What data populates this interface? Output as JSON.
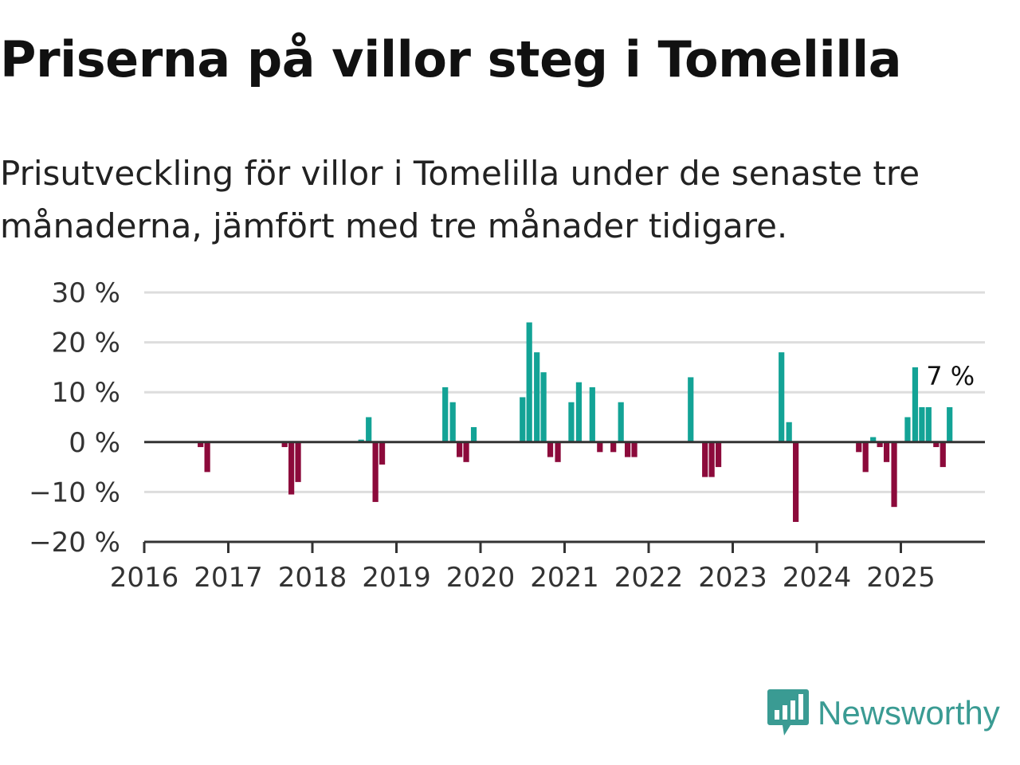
{
  "title": "Priserna på villor steg i Tomelilla",
  "subtitle": "Prisutveckling för villor i Tomelilla under de senaste tre månaderna, jämfört med tre månader tidigare.",
  "brand": {
    "name": "Newsworthy",
    "color": "#3a9b93"
  },
  "colors": {
    "positive": "#13a396",
    "negative": "#8c0a3b",
    "grid": "#dddddd",
    "axis": "#333333"
  },
  "chart_data": {
    "type": "bar",
    "x_unit": "year",
    "xlim": [
      2016,
      2026
    ],
    "ylim": [
      -20,
      30
    ],
    "yticks": [
      -20,
      -10,
      0,
      10,
      20,
      30
    ],
    "ytick_labels": [
      "−20 %",
      "−10 %",
      "0 %",
      "10 %",
      "20 %",
      "30 %"
    ],
    "xticks": [
      2016,
      2017,
      2018,
      2019,
      2020,
      2021,
      2022,
      2023,
      2024,
      2025
    ],
    "xtick_labels": [
      "2016",
      "2017",
      "2018",
      "2019",
      "2020",
      "2021",
      "2022",
      "2023",
      "2024",
      "2025"
    ],
    "grid": true,
    "annotation": {
      "text": "7 %",
      "x": 2025.58,
      "y": 7
    },
    "points": [
      {
        "x": 2016.67,
        "y": -1
      },
      {
        "x": 2016.75,
        "y": -6
      },
      {
        "x": 2017.67,
        "y": -1
      },
      {
        "x": 2017.75,
        "y": -10.5
      },
      {
        "x": 2017.83,
        "y": -8
      },
      {
        "x": 2018.58,
        "y": 0.5
      },
      {
        "x": 2018.67,
        "y": 5
      },
      {
        "x": 2018.75,
        "y": -12
      },
      {
        "x": 2018.83,
        "y": -4.5
      },
      {
        "x": 2019.58,
        "y": 11
      },
      {
        "x": 2019.67,
        "y": 8
      },
      {
        "x": 2019.75,
        "y": -3
      },
      {
        "x": 2019.83,
        "y": -4
      },
      {
        "x": 2019.92,
        "y": 3
      },
      {
        "x": 2020.5,
        "y": 9
      },
      {
        "x": 2020.58,
        "y": 24
      },
      {
        "x": 2020.67,
        "y": 18
      },
      {
        "x": 2020.75,
        "y": 14
      },
      {
        "x": 2020.83,
        "y": -3
      },
      {
        "x": 2020.92,
        "y": -4
      },
      {
        "x": 2021.08,
        "y": 8
      },
      {
        "x": 2021.17,
        "y": 12
      },
      {
        "x": 2021.33,
        "y": 11
      },
      {
        "x": 2021.42,
        "y": -2
      },
      {
        "x": 2021.58,
        "y": -2
      },
      {
        "x": 2021.67,
        "y": 8
      },
      {
        "x": 2021.75,
        "y": -3
      },
      {
        "x": 2021.83,
        "y": -3
      },
      {
        "x": 2022.5,
        "y": 13
      },
      {
        "x": 2022.67,
        "y": -7
      },
      {
        "x": 2022.75,
        "y": -7
      },
      {
        "x": 2022.83,
        "y": -5
      },
      {
        "x": 2023.58,
        "y": 18
      },
      {
        "x": 2023.67,
        "y": 4
      },
      {
        "x": 2023.75,
        "y": -16
      },
      {
        "x": 2024.5,
        "y": -2
      },
      {
        "x": 2024.58,
        "y": -6
      },
      {
        "x": 2024.67,
        "y": 1
      },
      {
        "x": 2024.75,
        "y": -1
      },
      {
        "x": 2024.83,
        "y": -4
      },
      {
        "x": 2024.92,
        "y": -13
      },
      {
        "x": 2025.08,
        "y": 5
      },
      {
        "x": 2025.17,
        "y": 15
      },
      {
        "x": 2025.25,
        "y": 7
      },
      {
        "x": 2025.33,
        "y": 7
      },
      {
        "x": 2025.42,
        "y": -1
      },
      {
        "x": 2025.5,
        "y": -5
      },
      {
        "x": 2025.58,
        "y": 7
      }
    ]
  }
}
